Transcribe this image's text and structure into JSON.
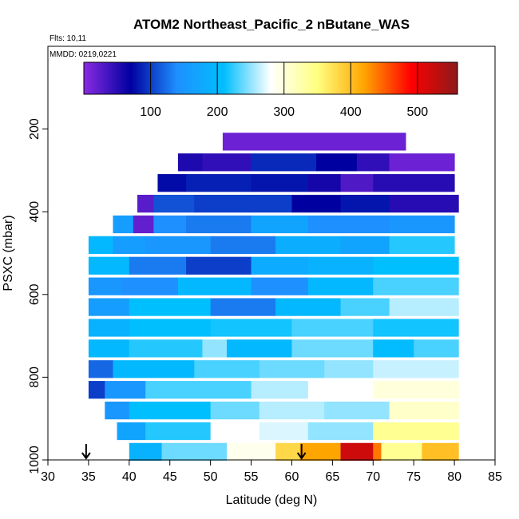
{
  "chart_data": {
    "type": "heatmap",
    "title": "ATOM2 Northeast_Pacific_2 nButane_WAS",
    "flights_label": "Flts: 10,11",
    "dates_label": "MMDD: 0219,0221",
    "xlabel": "Latitude (deg N)",
    "ylabel": "PSXC (mbar)",
    "xlim": [
      30,
      85
    ],
    "ylim": [
      1000,
      0
    ],
    "x_ticks": [
      "30",
      "35",
      "40",
      "45",
      "50",
      "55",
      "60",
      "65",
      "70",
      "75",
      "80",
      "85"
    ],
    "y_ticks": [
      "200",
      "400",
      "600",
      "800",
      "1000"
    ],
    "colorbar": {
      "range": [
        0,
        560
      ],
      "ticks": [
        "100",
        "200",
        "300",
        "400",
        "500"
      ],
      "colors": [
        "#8a2be2",
        "#0000a0",
        "#1e90ff",
        "#00bfff",
        "#ffffff",
        "#ffff80",
        "#ffa500",
        "#ff0000",
        "#8b1a1a"
      ]
    },
    "markers": [
      {
        "label": "arrow",
        "latitude": 34.7,
        "pressure": 1000
      },
      {
        "label": "arrow",
        "latitude": 61.2,
        "pressure": 1000
      }
    ],
    "bands": [
      {
        "p": 230,
        "segments": [
          [
            51.5,
            74,
            15
          ]
        ]
      },
      {
        "p": 280,
        "segments": [
          [
            46,
            49,
            55
          ],
          [
            49,
            55,
            45
          ],
          [
            55,
            63,
            90
          ],
          [
            63,
            68,
            70
          ],
          [
            68,
            72,
            45
          ],
          [
            72,
            74,
            15
          ],
          [
            74,
            80,
            15
          ]
        ]
      },
      {
        "p": 330,
        "segments": [
          [
            43.5,
            47,
            75
          ],
          [
            47,
            55,
            85
          ],
          [
            55,
            62,
            80
          ],
          [
            62,
            66,
            60
          ],
          [
            66,
            70,
            30
          ],
          [
            70,
            80,
            50
          ]
        ]
      },
      {
        "p": 380,
        "segments": [
          [
            41,
            43,
            25
          ],
          [
            43,
            48,
            110
          ],
          [
            48,
            60,
            100
          ],
          [
            60,
            66,
            70
          ],
          [
            66,
            72,
            80
          ],
          [
            72,
            80.5,
            50
          ]
        ]
      },
      {
        "p": 430,
        "segments": [
          [
            38,
            40.5,
            160
          ],
          [
            40.5,
            43,
            20
          ],
          [
            43,
            47,
            140
          ],
          [
            47,
            55,
            130
          ],
          [
            55,
            62,
            170
          ],
          [
            62,
            72,
            140
          ],
          [
            72,
            80,
            150
          ]
        ]
      },
      {
        "p": 480,
        "segments": [
          [
            35,
            38,
            200
          ],
          [
            38,
            42,
            160
          ],
          [
            42,
            50,
            150
          ],
          [
            50,
            58,
            130
          ],
          [
            58,
            66,
            185
          ],
          [
            66,
            72,
            170
          ],
          [
            72,
            80,
            220
          ]
        ]
      },
      {
        "p": 530,
        "segments": [
          [
            35,
            40,
            200
          ],
          [
            40,
            47,
            130
          ],
          [
            47,
            55,
            100
          ],
          [
            55,
            62,
            180
          ],
          [
            62,
            70,
            190
          ],
          [
            70,
            80.5,
            210
          ]
        ]
      },
      {
        "p": 580,
        "segments": [
          [
            35,
            39,
            150
          ],
          [
            39,
            46,
            140
          ],
          [
            46,
            55,
            200
          ],
          [
            55,
            62,
            140
          ],
          [
            62,
            70,
            200
          ],
          [
            70,
            80.5,
            230
          ]
        ]
      },
      {
        "p": 630,
        "segments": [
          [
            35,
            40,
            160
          ],
          [
            40,
            50,
            210
          ],
          [
            50,
            58,
            130
          ],
          [
            58,
            66,
            200
          ],
          [
            66,
            72,
            230
          ],
          [
            72,
            80.5,
            260
          ]
        ]
      },
      {
        "p": 680,
        "segments": [
          [
            35,
            40,
            190
          ],
          [
            40,
            50,
            210
          ],
          [
            50,
            60,
            215
          ],
          [
            60,
            70,
            230
          ],
          [
            70,
            80.5,
            215
          ]
        ]
      },
      {
        "p": 730,
        "segments": [
          [
            35,
            40,
            200
          ],
          [
            40,
            49,
            220
          ],
          [
            49,
            52,
            250
          ],
          [
            52,
            60,
            200
          ],
          [
            60,
            70,
            240
          ],
          [
            70,
            75,
            205
          ],
          [
            75,
            80.5,
            230
          ]
        ]
      },
      {
        "p": 780,
        "segments": [
          [
            35,
            38,
            120
          ],
          [
            38,
            48,
            200
          ],
          [
            48,
            56,
            230
          ],
          [
            56,
            64,
            240
          ],
          [
            64,
            70,
            250
          ],
          [
            70,
            80.5,
            265
          ]
        ]
      },
      {
        "p": 830,
        "segments": [
          [
            35,
            37,
            100
          ],
          [
            37,
            42,
            150
          ],
          [
            42,
            55,
            230
          ],
          [
            55,
            62,
            260
          ],
          [
            62,
            70,
            280
          ],
          [
            70,
            80.5,
            300
          ]
        ]
      },
      {
        "p": 880,
        "segments": [
          [
            37,
            40,
            150
          ],
          [
            40,
            50,
            210
          ],
          [
            50,
            56,
            240
          ],
          [
            56,
            64,
            260
          ],
          [
            64,
            72,
            250
          ],
          [
            72,
            80.5,
            310
          ]
        ]
      },
      {
        "p": 930,
        "segments": [
          [
            38.5,
            42,
            170
          ],
          [
            42,
            50,
            220
          ],
          [
            50,
            56,
            280
          ],
          [
            56,
            62,
            270
          ],
          [
            62,
            70,
            250
          ],
          [
            70,
            80.5,
            340
          ]
        ]
      },
      {
        "p": 980,
        "segments": [
          [
            40,
            44,
            190
          ],
          [
            44,
            52,
            240
          ],
          [
            52,
            58,
            290
          ],
          [
            58,
            61,
            380
          ],
          [
            61,
            66,
            420
          ],
          [
            66,
            70,
            520
          ],
          [
            70,
            71,
            440
          ],
          [
            71,
            76,
            340
          ],
          [
            76,
            80.5,
            400
          ]
        ]
      }
    ]
  }
}
